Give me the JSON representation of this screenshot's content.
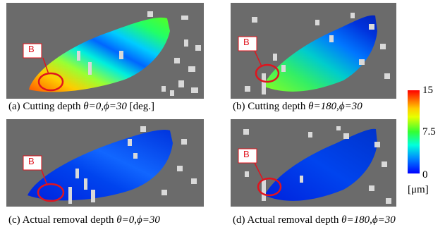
{
  "panels": [
    {
      "id": "a",
      "marker": "B",
      "caption_prefix": "(a) Cutting depth ",
      "caption_params": "θ=0,ϕ=30",
      "caption_suffix": " [deg.]"
    },
    {
      "id": "b",
      "marker": "B",
      "caption_prefix": "(b) Cutting depth ",
      "caption_params": "θ=180,ϕ=30",
      "caption_suffix": ""
    },
    {
      "id": "c",
      "marker": "B",
      "caption_prefix": "(c) Actual removal depth ",
      "caption_params": "θ=0,ϕ=30",
      "caption_suffix": ""
    },
    {
      "id": "d",
      "marker": "B",
      "caption_prefix": "(d) Actual removal depth ",
      "caption_params": "θ=180,ϕ=30",
      "caption_suffix": ""
    }
  ],
  "color_scale": {
    "max_label": "15",
    "mid_label": "7.5",
    "min_label": "0",
    "unit": "[μm]",
    "colors": [
      "#ff0000",
      "#ffcc00",
      "#33ff33",
      "#00ffdd",
      "#0088ff",
      "#0000ff"
    ]
  }
}
